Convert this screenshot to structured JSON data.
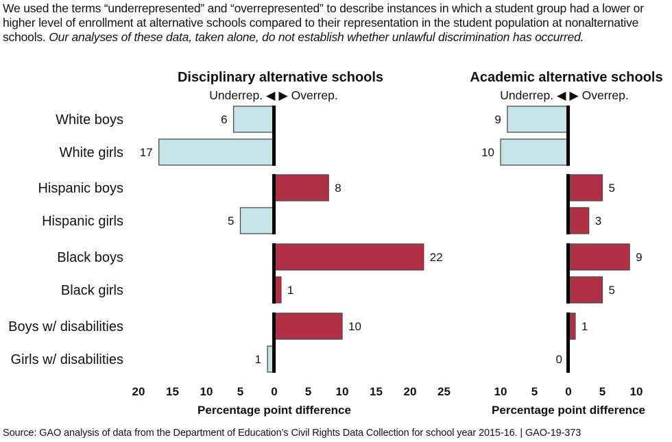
{
  "note": {
    "plain": "We used the terms “underrepresented” and “overrepresented” to describe instances in which a student group had a lower or higher level of enrollment at alternative schools compared to their representation in the student population at nonalternative schools. ",
    "italic": "Our analyses of these data, taken alone, do not establish whether unlawful discrimination has occurred."
  },
  "source": "Source: GAO analysis of data from the Department of Education’s Civil Rights Data Collection for school year 2015-16.  |  GAO-19-373",
  "colors": {
    "underrepresented": "#c5e4e8",
    "overrepresented": "#b22f44",
    "bar_outline": "#4a4a4a",
    "axis": "#000000"
  },
  "chart_data": [
    {
      "type": "bar",
      "orientation": "horizontal",
      "title": "Disciplinary alternative schools",
      "direction_label": {
        "left": "Underrep.",
        "left_arrow": "◀",
        "right_arrow": "▶",
        "right": "Overrep."
      },
      "xlabel": "Percentage point difference",
      "xlim": [
        -20,
        25
      ],
      "xticks": [
        -20,
        -15,
        -10,
        -5,
        0,
        5,
        10,
        15,
        20,
        25
      ],
      "xtick_labels": [
        "20",
        "15",
        "10",
        "5",
        "0",
        "5",
        "10",
        "15",
        "20",
        "25"
      ],
      "categories": [
        "White boys",
        "White girls",
        "Hispanic boys",
        "Hispanic girls",
        "Black boys",
        "Black girls",
        "Boys w/ disabilities",
        "Girls w/ disabilities"
      ],
      "values": [
        -6,
        -17,
        8,
        -5,
        22,
        1,
        10,
        -1
      ],
      "value_labels": [
        "6",
        "17",
        "8",
        "5",
        "22",
        "1",
        "10",
        "1"
      ]
    },
    {
      "type": "bar",
      "orientation": "horizontal",
      "title": "Academic alternative schools",
      "direction_label": {
        "left": "Underrep.",
        "left_arrow": "◀",
        "right_arrow": "▶",
        "right": "Overrep."
      },
      "xlabel": "Percentage point difference",
      "xlim": [
        -10,
        10
      ],
      "xticks": [
        -10,
        -5,
        0,
        5,
        10
      ],
      "xtick_labels": [
        "10",
        "5",
        "0",
        "5",
        "10"
      ],
      "categories": [
        "White boys",
        "White girls",
        "Hispanic boys",
        "Hispanic girls",
        "Black boys",
        "Black girls",
        "Boys w/ disabilities",
        "Girls w/ disabilities"
      ],
      "values": [
        -9,
        -10,
        5,
        3,
        9,
        5,
        1,
        0
      ],
      "value_labels": [
        "9",
        "10",
        "5",
        "3",
        "9",
        "5",
        "1",
        "0"
      ]
    }
  ]
}
